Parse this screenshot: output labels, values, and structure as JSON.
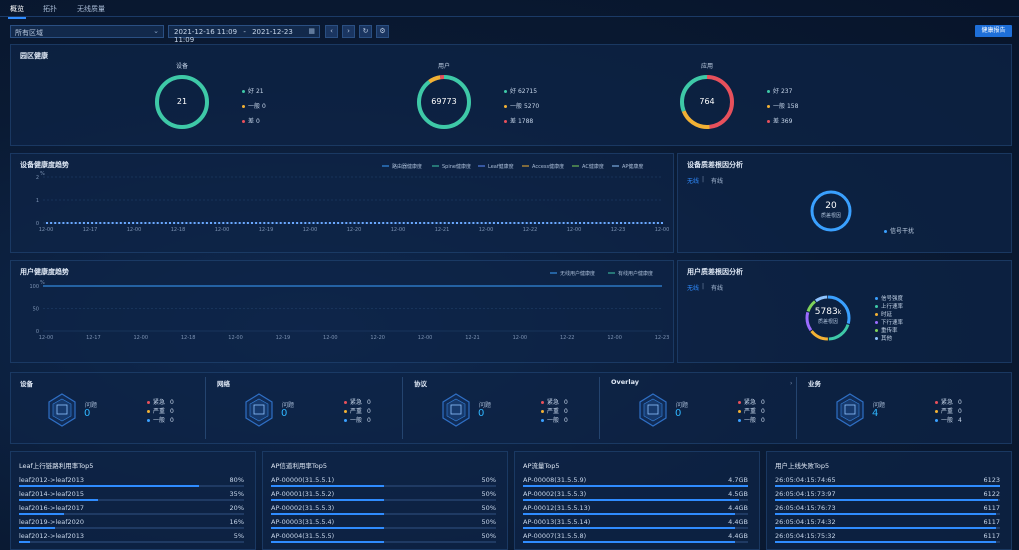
{
  "tabs": [
    "概览",
    "拓扑",
    "无线质量"
  ],
  "toolbar": {
    "area_select": "所有区域",
    "date_start": "2021-12-16 11:09",
    "date_sep": "-",
    "date_end": "2021-12-23 11:09",
    "prev_icon": "chevron-left-icon",
    "next_icon": "chevron-right-icon",
    "refresh_icon": "refresh-icon",
    "settings_icon": "gear-icon",
    "report_button": "健康报告"
  },
  "health": {
    "title": "园区健康",
    "donuts": [
      {
        "label": "设备",
        "value": "21",
        "legend": [
          {
            "label": "好",
            "value": "21",
            "color": "#3ec9a7"
          },
          {
            "label": "一般",
            "value": "0",
            "color": "#f2b134"
          },
          {
            "label": "差",
            "value": "0",
            "color": "#e8505b"
          }
        ]
      },
      {
        "label": "用户",
        "value": "69773",
        "legend": [
          {
            "label": "好",
            "value": "62715",
            "color": "#3ec9a7"
          },
          {
            "label": "一般",
            "value": "5270",
            "color": "#f2b134"
          },
          {
            "label": "差",
            "value": "1788",
            "color": "#e8505b"
          }
        ]
      },
      {
        "label": "应用",
        "value": "764",
        "legend": [
          {
            "label": "好",
            "value": "237",
            "color": "#3ec9a7"
          },
          {
            "label": "一般",
            "value": "158",
            "color": "#f2b134"
          },
          {
            "label": "差",
            "value": "369",
            "color": "#e8505b"
          }
        ]
      }
    ]
  },
  "device_trend": {
    "title": "设备健康度趋势",
    "legend": [
      "路由器健康度",
      "Spine健康度",
      "Leaf健康度",
      "Access健康度",
      "AC健康度",
      "AP健康度"
    ],
    "ylabels": [
      "2",
      "1",
      "0"
    ],
    "yunit": "%",
    "xlabels": [
      "12-00",
      "12-17",
      "12-00",
      "12-18",
      "12-00",
      "12-19",
      "12-00",
      "12-20",
      "12-00",
      "12-21",
      "12-00",
      "12-22",
      "12-00",
      "12-23",
      "12-00"
    ]
  },
  "device_quality": {
    "title": "设备质差根因分析",
    "tabs": [
      "无线",
      "有线"
    ],
    "center_value": "20",
    "center_label": "质差根因",
    "legend": "信号干扰"
  },
  "user_trend": {
    "title": "用户健康度趋势",
    "legend": [
      "无线用户健康度",
      "有线用户健康度"
    ],
    "ylabels": [
      "100",
      "50",
      "0"
    ],
    "yunit": "%",
    "xlabels": [
      "12-00",
      "12-17",
      "12-00",
      "12-18",
      "12-00",
      "12-19",
      "12-00",
      "12-20",
      "12-00",
      "12-21",
      "12-00",
      "12-22",
      "12-00",
      "12-23"
    ]
  },
  "user_quality": {
    "title": "用户质差根因分析",
    "tabs": [
      "无线",
      "有线"
    ],
    "center_value": "5783",
    "center_unit": "k",
    "center_label": "质差根因",
    "legend": [
      {
        "label": "信号强度",
        "color": "#3aa0ff"
      },
      {
        "label": "上行速率",
        "color": "#3ec9a7"
      },
      {
        "label": "时延",
        "color": "#f2b134"
      },
      {
        "label": "下行速率",
        "color": "#9b6cff"
      },
      {
        "label": "重传率",
        "color": "#7fd35a"
      },
      {
        "label": "其他",
        "color": "#8fc4ff"
      }
    ]
  },
  "issues": [
    {
      "title": "设备",
      "label": "问题",
      "value": "0",
      "icon": "device-icon",
      "severe": "0",
      "major": "0",
      "minor": "0"
    },
    {
      "title": "网络",
      "label": "问题",
      "value": "0",
      "icon": "network-icon",
      "severe": "0",
      "major": "0",
      "minor": "0"
    },
    {
      "title": "协议",
      "label": "问题",
      "value": "0",
      "icon": "protocol-icon",
      "severe": "0",
      "major": "0",
      "minor": "0"
    },
    {
      "title": "Overlay",
      "label": "问题",
      "value": "0",
      "icon": "overlay-icon",
      "severe": "0",
      "major": "0",
      "minor": "0"
    },
    {
      "title": "业务",
      "label": "问题",
      "value": "4",
      "icon": "service-icon",
      "severe": "0",
      "major": "0",
      "minor": "4"
    }
  ],
  "severity_labels": [
    "紧急",
    "严重",
    "一般"
  ],
  "top5": [
    {
      "title": "Leaf上行链路利用率Top5",
      "rows": [
        {
          "name": "leaf2012->leaf2013",
          "value": "80%",
          "pct": 0.8
        },
        {
          "name": "leaf2014->leaf2015",
          "value": "35%",
          "pct": 0.35
        },
        {
          "name": "leaf2016->leaf2017",
          "value": "20%",
          "pct": 0.2
        },
        {
          "name": "leaf2019->leaf2020",
          "value": "16%",
          "pct": 0.16
        },
        {
          "name": "leaf2012->leaf2013",
          "value": "5%",
          "pct": 0.05
        }
      ]
    },
    {
      "title": "AP信道利用率Top5",
      "rows": [
        {
          "name": "AP-00000(31.5.5.1)",
          "value": "50%",
          "pct": 0.5
        },
        {
          "name": "AP-00001(31.5.5.2)",
          "value": "50%",
          "pct": 0.5
        },
        {
          "name": "AP-00002(31.5.5.3)",
          "value": "50%",
          "pct": 0.5
        },
        {
          "name": "AP-00003(31.5.5.4)",
          "value": "50%",
          "pct": 0.5
        },
        {
          "name": "AP-00004(31.5.5.5)",
          "value": "50%",
          "pct": 0.5
        }
      ]
    },
    {
      "title": "AP流量Top5",
      "rows": [
        {
          "name": "AP-00008(31.5.5.9)",
          "value": "4.7GB",
          "pct": 1.0
        },
        {
          "name": "AP-00002(31.5.5.3)",
          "value": "4.5GB",
          "pct": 0.96
        },
        {
          "name": "AP-00012(31.5.5.13)",
          "value": "4.4GB",
          "pct": 0.94
        },
        {
          "name": "AP-00013(31.5.5.14)",
          "value": "4.4GB",
          "pct": 0.94
        },
        {
          "name": "AP-00007(31.5.5.8)",
          "value": "4.4GB",
          "pct": 0.94
        }
      ]
    },
    {
      "title": "用户上线失败Top5",
      "rows": [
        {
          "name": "26:05:04:15:74:65",
          "value": "6123",
          "pct": 1.0
        },
        {
          "name": "26:05:04:15:73:97",
          "value": "6122",
          "pct": 0.99
        },
        {
          "name": "26:05:04:15:76:73",
          "value": "6117",
          "pct": 0.98
        },
        {
          "name": "26:05:04:15:74:32",
          "value": "6117",
          "pct": 0.98
        },
        {
          "name": "26:05:04:15:75:32",
          "value": "6117",
          "pct": 0.98
        }
      ]
    }
  ]
}
